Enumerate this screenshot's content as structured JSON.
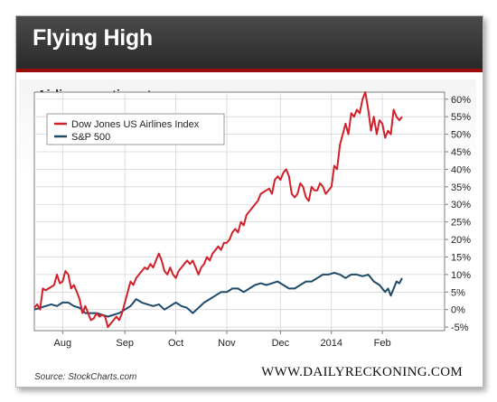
{
  "header": {
    "title": "Flying High"
  },
  "footer": {
    "source": "Source: StockCharts.com",
    "brand": "WWW.DAILYRECKONING.COM"
  },
  "colors": {
    "airlines": "#d2202a",
    "sp500": "#1e4a6a",
    "header_bg": "#333333",
    "header_rule": "#9a0d0d"
  },
  "chart_data": {
    "type": "line",
    "title": "Airlines continue to soar",
    "xlabel": "",
    "ylabel": "",
    "ylim": [
      -6,
      62
    ],
    "y_ticks": [
      -5,
      0,
      5,
      10,
      15,
      20,
      25,
      30,
      35,
      40,
      45,
      50,
      55,
      60
    ],
    "y_tick_labels": [
      "-5%",
      "0%",
      "5%",
      "10%",
      "15%",
      "20%",
      "25%",
      "30%",
      "35%",
      "40%",
      "45%",
      "50%",
      "55%",
      "60%"
    ],
    "x_range": [
      0,
      145
    ],
    "x_ticks": [
      10,
      32,
      50,
      68,
      87,
      105,
      123
    ],
    "x_tick_labels": [
      "Aug",
      "Sep",
      "Oct",
      "Nov",
      "Dec",
      "2014",
      "Feb"
    ],
    "grid": true,
    "legend_position": "top-left",
    "series": [
      {
        "name": "Dow Jones US Airlines Index",
        "color": "#d2202a",
        "points": [
          [
            0,
            0.5
          ],
          [
            1,
            1.5
          ],
          [
            2,
            0
          ],
          [
            3,
            6
          ],
          [
            4,
            5.5
          ],
          [
            5,
            6
          ],
          [
            6,
            6.5
          ],
          [
            7,
            7
          ],
          [
            8,
            10
          ],
          [
            9,
            7.5
          ],
          [
            10,
            8
          ],
          [
            11,
            11
          ],
          [
            12,
            10
          ],
          [
            13,
            6
          ],
          [
            14,
            7
          ],
          [
            15,
            5
          ],
          [
            16,
            3
          ],
          [
            17,
            -1
          ],
          [
            18,
            1
          ],
          [
            19,
            -1
          ],
          [
            20,
            -3
          ],
          [
            21,
            -2.5
          ],
          [
            22,
            -1
          ],
          [
            23,
            -2
          ],
          [
            24,
            -1.5
          ],
          [
            25,
            -2
          ],
          [
            26,
            -5
          ],
          [
            27,
            -4
          ],
          [
            28,
            -3
          ],
          [
            29,
            -2
          ],
          [
            30,
            -3
          ],
          [
            31,
            -1
          ],
          [
            32,
            2
          ],
          [
            33,
            5
          ],
          [
            34,
            8
          ],
          [
            35,
            7
          ],
          [
            36,
            9
          ],
          [
            37,
            10
          ],
          [
            38,
            11
          ],
          [
            39,
            12
          ],
          [
            40,
            11.5
          ],
          [
            41,
            13
          ],
          [
            42,
            12
          ],
          [
            43,
            14
          ],
          [
            44,
            16
          ],
          [
            45,
            14
          ],
          [
            46,
            11
          ],
          [
            47,
            10
          ],
          [
            48,
            12
          ],
          [
            49,
            10
          ],
          [
            50,
            9
          ],
          [
            51,
            11
          ],
          [
            52,
            12
          ],
          [
            53,
            13
          ],
          [
            54,
            14
          ],
          [
            55,
            13
          ],
          [
            56,
            14
          ],
          [
            57,
            12
          ],
          [
            58,
            10
          ],
          [
            59,
            12
          ],
          [
            60,
            13
          ],
          [
            61,
            15
          ],
          [
            62,
            14
          ],
          [
            63,
            16
          ],
          [
            64,
            17
          ],
          [
            65,
            18
          ],
          [
            66,
            17
          ],
          [
            67,
            19
          ],
          [
            68,
            19
          ],
          [
            69,
            20
          ],
          [
            70,
            22
          ],
          [
            71,
            23
          ],
          [
            72,
            22
          ],
          [
            73,
            25
          ],
          [
            74,
            24
          ],
          [
            75,
            27
          ],
          [
            76,
            28
          ],
          [
            77,
            29
          ],
          [
            78,
            30
          ],
          [
            79,
            31
          ],
          [
            80,
            33
          ],
          [
            81,
            33.5
          ],
          [
            82,
            34
          ],
          [
            83,
            34.5
          ],
          [
            84,
            33
          ],
          [
            85,
            37
          ],
          [
            86,
            38
          ],
          [
            87,
            37
          ],
          [
            88,
            39
          ],
          [
            89,
            40
          ],
          [
            90,
            38
          ],
          [
            91,
            33
          ],
          [
            92,
            32
          ],
          [
            93,
            33
          ],
          [
            94,
            36
          ],
          [
            95,
            35
          ],
          [
            96,
            32
          ],
          [
            97,
            31
          ],
          [
            98,
            35
          ],
          [
            99,
            34
          ],
          [
            100,
            34
          ],
          [
            101,
            36
          ],
          [
            102,
            35
          ],
          [
            103,
            33
          ],
          [
            104,
            34
          ],
          [
            105,
            35
          ],
          [
            106,
            41
          ],
          [
            107,
            40
          ],
          [
            108,
            47
          ],
          [
            109,
            50
          ],
          [
            110,
            53
          ],
          [
            111,
            50
          ],
          [
            112,
            56
          ],
          [
            113,
            55
          ],
          [
            114,
            57
          ],
          [
            115,
            56
          ],
          [
            116,
            60
          ],
          [
            117,
            62
          ],
          [
            118,
            57
          ],
          [
            119,
            51
          ],
          [
            120,
            55
          ],
          [
            121,
            50
          ],
          [
            122,
            54
          ],
          [
            123,
            53
          ],
          [
            124,
            49
          ],
          [
            125,
            51
          ],
          [
            126,
            50
          ],
          [
            127,
            57
          ],
          [
            128,
            55
          ],
          [
            129,
            54
          ],
          [
            130,
            55
          ]
        ]
      },
      {
        "name": "S&P 500",
        "color": "#1e4a6a",
        "points": [
          [
            0,
            0
          ],
          [
            2,
            0.5
          ],
          [
            4,
            1
          ],
          [
            6,
            1.5
          ],
          [
            8,
            1
          ],
          [
            10,
            2
          ],
          [
            12,
            2
          ],
          [
            14,
            1
          ],
          [
            16,
            0.5
          ],
          [
            18,
            -1
          ],
          [
            20,
            -1
          ],
          [
            22,
            -1
          ],
          [
            24,
            -1.5
          ],
          [
            26,
            -2
          ],
          [
            28,
            -1.5
          ],
          [
            30,
            -1
          ],
          [
            32,
            0
          ],
          [
            34,
            1
          ],
          [
            36,
            3
          ],
          [
            38,
            2
          ],
          [
            40,
            1.5
          ],
          [
            42,
            1
          ],
          [
            44,
            1.5
          ],
          [
            46,
            0
          ],
          [
            48,
            1
          ],
          [
            50,
            2
          ],
          [
            52,
            1
          ],
          [
            54,
            0.5
          ],
          [
            56,
            -1
          ],
          [
            58,
            0.5
          ],
          [
            60,
            2
          ],
          [
            62,
            3
          ],
          [
            64,
            4
          ],
          [
            66,
            5
          ],
          [
            68,
            5
          ],
          [
            70,
            6
          ],
          [
            72,
            6
          ],
          [
            74,
            5
          ],
          [
            76,
            6
          ],
          [
            78,
            7
          ],
          [
            80,
            7.5
          ],
          [
            82,
            7
          ],
          [
            84,
            7.5
          ],
          [
            86,
            8
          ],
          [
            88,
            7
          ],
          [
            90,
            6
          ],
          [
            92,
            6
          ],
          [
            94,
            7
          ],
          [
            96,
            8
          ],
          [
            98,
            8
          ],
          [
            100,
            9
          ],
          [
            102,
            10
          ],
          [
            104,
            10
          ],
          [
            106,
            10.5
          ],
          [
            108,
            10
          ],
          [
            110,
            9
          ],
          [
            112,
            10
          ],
          [
            114,
            10
          ],
          [
            116,
            9.5
          ],
          [
            118,
            10
          ],
          [
            120,
            8
          ],
          [
            122,
            7
          ],
          [
            124,
            5
          ],
          [
            125,
            6
          ],
          [
            126,
            4
          ],
          [
            128,
            8
          ],
          [
            129,
            7.5
          ],
          [
            130,
            9
          ]
        ]
      }
    ]
  }
}
